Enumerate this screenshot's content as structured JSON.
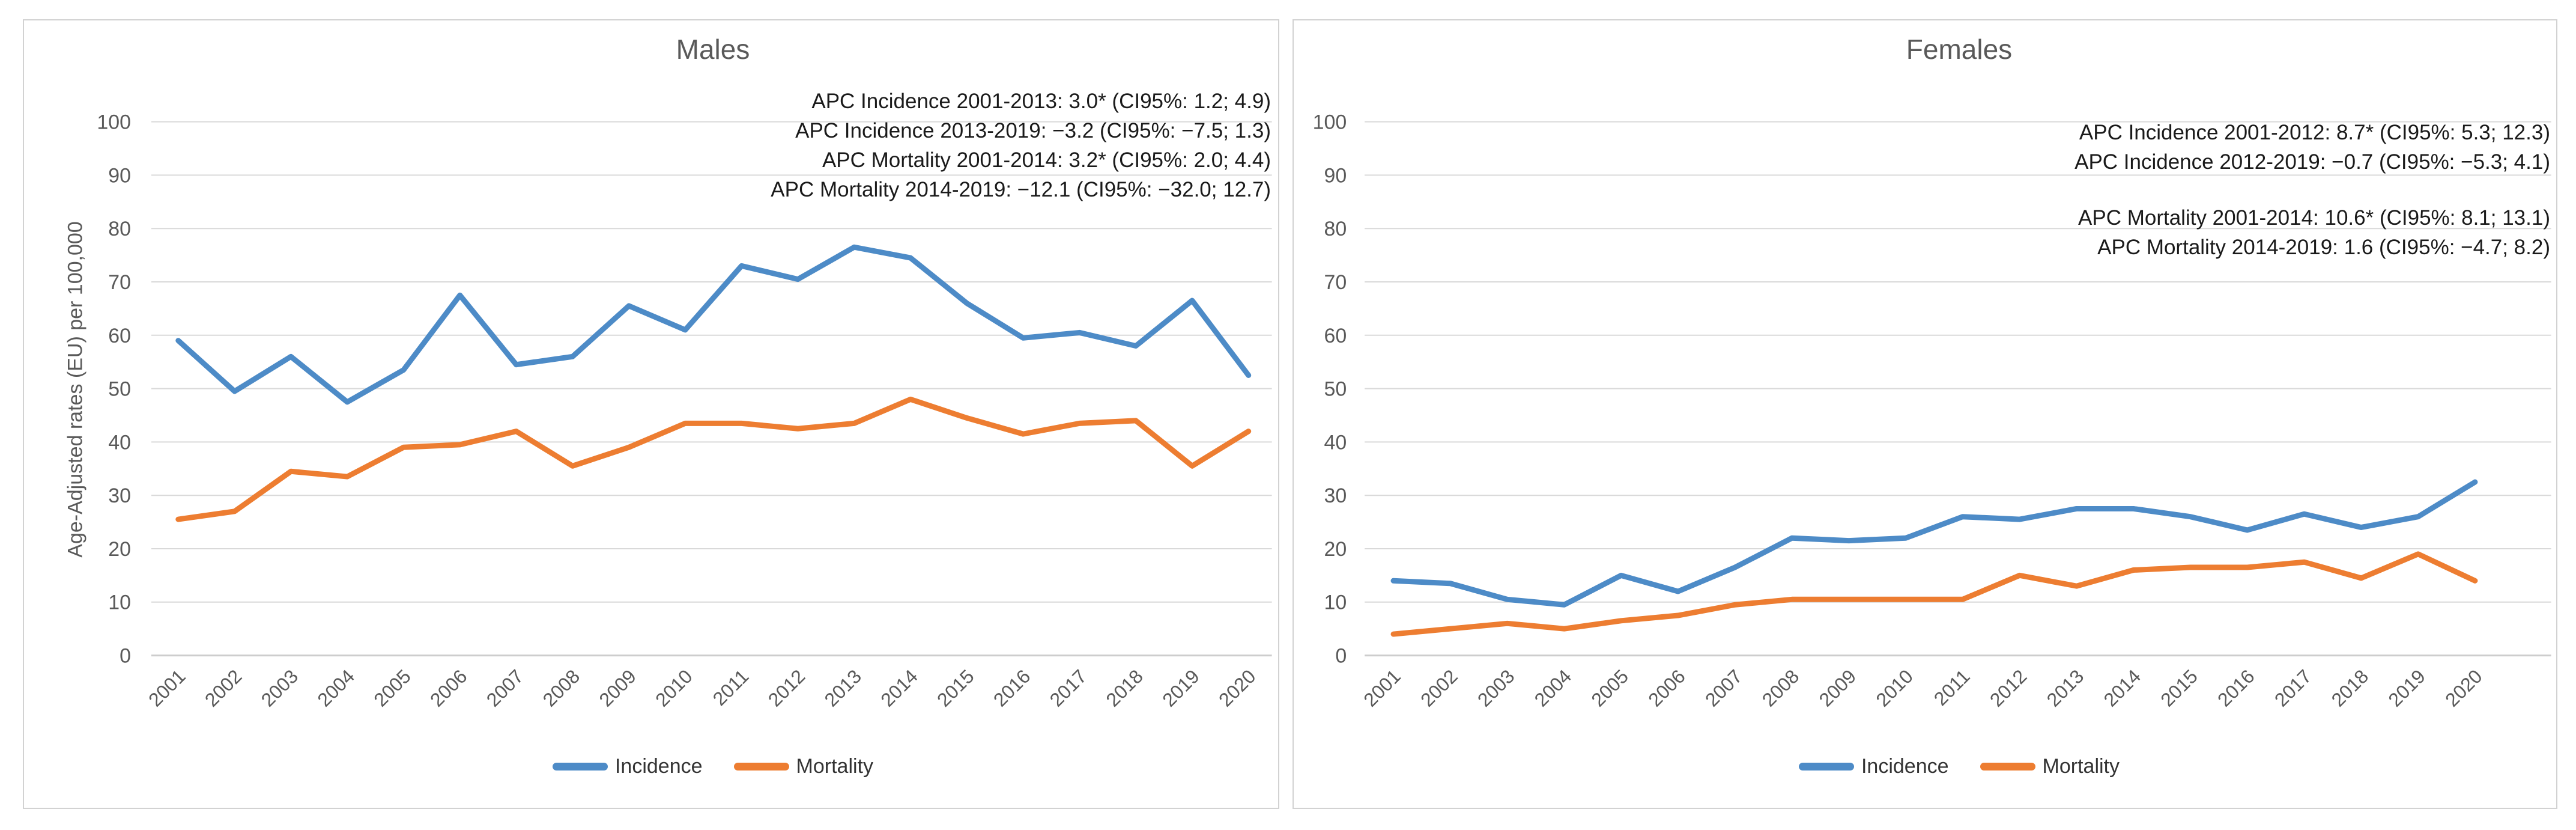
{
  "figure": {
    "background": "#FFFFFF",
    "panel_border_color": "#D2D2D2"
  },
  "colors": {
    "incidence": "#4D8BC7",
    "mortality": "#ED7D31",
    "gridline": "#D9D9D9",
    "axis_line": "#CDCDCD",
    "tick_text": "#595959",
    "title_text": "#595959",
    "annotation_text": "#1A1A1A"
  },
  "y_axis": {
    "title": "Age-Adjusted rates (EU) per 100,000",
    "min": 0,
    "max": 100,
    "step": 10
  },
  "legend": {
    "position": "bottom",
    "items": [
      {
        "label": "Incidence",
        "color": "#4D8BC7"
      },
      {
        "label": "Mortality",
        "color": "#ED7D31"
      }
    ]
  },
  "chart_data": [
    {
      "type": "line",
      "title": "Males",
      "xlabel": "",
      "ylabel": "Age-Adjusted rates (EU) per 100,000",
      "ylim": [
        0,
        100
      ],
      "grid": true,
      "legend_position": "bottom",
      "x": [
        2001,
        2002,
        2003,
        2004,
        2005,
        2006,
        2007,
        2008,
        2009,
        2010,
        2011,
        2012,
        2013,
        2014,
        2015,
        2016,
        2017,
        2018,
        2019,
        2020
      ],
      "series": [
        {
          "name": "Incidence",
          "color": "#4D8BC7",
          "values": [
            59,
            49.5,
            56,
            47.5,
            53.5,
            67.5,
            54.5,
            56,
            65.5,
            61,
            73,
            70.5,
            76.5,
            74.5,
            66,
            59.5,
            60.5,
            58,
            66.5,
            52.5
          ]
        },
        {
          "name": "Mortality",
          "color": "#ED7D31",
          "values": [
            25.5,
            27,
            34.5,
            33.5,
            39,
            39.5,
            42,
            35.5,
            39,
            43.5,
            43.5,
            42.5,
            43.5,
            48,
            44.5,
            41.5,
            43.5,
            44,
            35.5,
            42
          ]
        }
      ],
      "annotations": [
        "APC Incidence 2001-2013: 3.0* (CI95%: 1.2; 4.9)",
        "APC Incidence 2013-2019: −3.2 (CI95%: −7.5; 1.3)",
        "APC Mortality 2001-2014: 3.2* (CI95%: 2.0; 4.4)",
        "APC Mortality 2014-2019: −12.1 (CI95%: −32.0; 12.7)"
      ]
    },
    {
      "type": "line",
      "title": "Females",
      "xlabel": "",
      "ylabel": "Age-Adjusted rates (EU) per 100,000",
      "ylim": [
        0,
        100
      ],
      "grid": true,
      "legend_position": "bottom",
      "x": [
        2001,
        2002,
        2003,
        2004,
        2005,
        2006,
        2007,
        2008,
        2009,
        2010,
        2011,
        2012,
        2013,
        2014,
        2015,
        2016,
        2017,
        2018,
        2019,
        2020
      ],
      "series": [
        {
          "name": "Incidence",
          "color": "#4D8BC7",
          "values": [
            14,
            13.5,
            10.5,
            9.5,
            15,
            12,
            16.5,
            22,
            21.5,
            22,
            26,
            25.5,
            27.5,
            27.5,
            26,
            23.5,
            26.5,
            24,
            26,
            32.5
          ]
        },
        {
          "name": "Mortality",
          "color": "#ED7D31",
          "values": [
            4,
            5,
            6,
            5,
            6.5,
            7.5,
            9.5,
            10.5,
            10.5,
            10.5,
            10.5,
            15,
            13,
            16,
            16.5,
            16.5,
            17.5,
            14.5,
            19,
            14
          ]
        }
      ],
      "annotations": [
        "APC Incidence 2001-2012: 8.7* (CI95%: 5.3; 12.3)",
        "APC Incidence 2012-2019: −0.7 (CI95%: −5.3; 4.1)",
        "APC Mortality 2001-2014: 10.6* (CI95%: 8.1; 13.1)",
        "APC Mortality 2014-2019: 1.6 (CI95%: −4.7; 8.2)"
      ]
    }
  ]
}
